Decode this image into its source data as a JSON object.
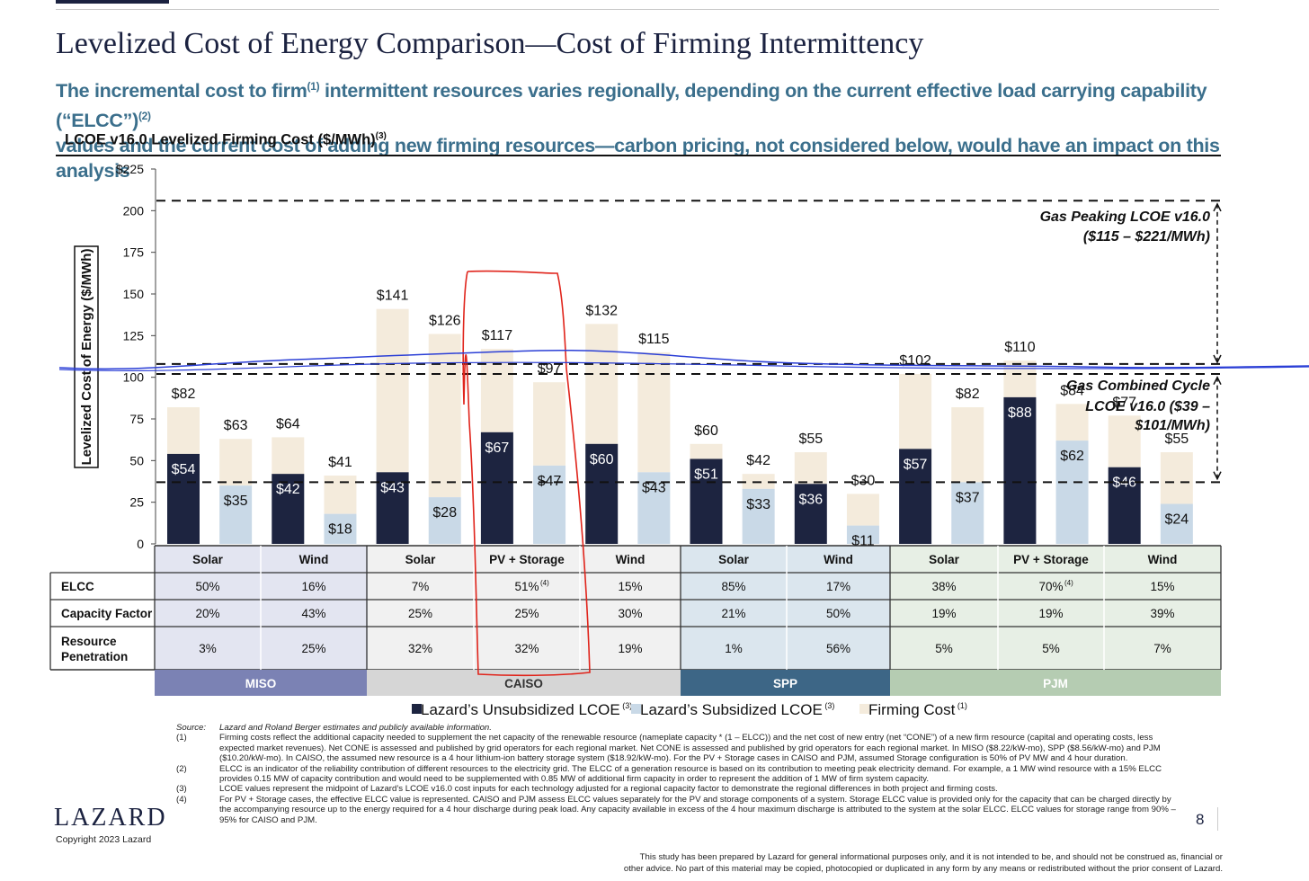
{
  "header": {
    "title": "Levelized Cost of Energy Comparison—Cost of Firming Intermittency",
    "subtitle_line1_a": "The incremental cost to firm",
    "subtitle_line1_sup1": "(1)",
    "subtitle_line1_b": " intermittent resources varies regionally, depending on the current effective load carrying capability (“ELCC”)",
    "subtitle_line1_sup2": "(2)",
    "subtitle_line2": "values and the current cost of adding new firming resources—carbon pricing, not considered below, would have an impact on this analysis",
    "chart_heading": "LCOE v16.0 Levelized Firming Cost ($/MWh)",
    "chart_heading_sup": "(3)"
  },
  "chart_data": {
    "type": "bar",
    "ylabel": "Levelized Cost of Energy ($/MWh)",
    "ylim": [
      0,
      225
    ],
    "yticks": [
      "$225",
      "200",
      "175",
      "150",
      "125",
      "100",
      "75",
      "50",
      "25",
      "0"
    ],
    "bars": [
      {
        "total": 82,
        "base": 54,
        "kind": "unsub",
        "total_label": "$82",
        "base_label": "$54"
      },
      {
        "total": 63,
        "base": 35,
        "kind": "sub",
        "total_label": "$63",
        "base_label": "$35"
      },
      {
        "total": 64,
        "base": 42,
        "kind": "unsub",
        "total_label": "$64",
        "base_label": "$42"
      },
      {
        "total": 41,
        "base": 18,
        "kind": "sub",
        "total_label": "$41",
        "base_label": "$18"
      },
      {
        "total": 141,
        "base": 43,
        "kind": "unsub",
        "total_label": "$141",
        "base_label": "$43"
      },
      {
        "total": 126,
        "base": 28,
        "kind": "sub",
        "total_label": "$126",
        "base_label": "$28"
      },
      {
        "total": 117,
        "base": 67,
        "kind": "unsub",
        "total_label": "$117",
        "base_label": "$67"
      },
      {
        "total": 97,
        "base": 47,
        "kind": "sub",
        "total_label": "$97",
        "base_label": "$47"
      },
      {
        "total": 132,
        "base": 60,
        "kind": "unsub",
        "total_label": "$132",
        "base_label": "$60"
      },
      {
        "total": 115,
        "base": 43,
        "kind": "sub",
        "total_label": "$115",
        "base_label": "$43"
      },
      {
        "total": 60,
        "base": 51,
        "kind": "unsub",
        "total_label": "$60",
        "base_label": "$51"
      },
      {
        "total": 42,
        "base": 33,
        "kind": "sub",
        "total_label": "$42",
        "base_label": "$33"
      },
      {
        "total": 55,
        "base": 36,
        "kind": "unsub",
        "total_label": "$55",
        "base_label": "$36"
      },
      {
        "total": 30,
        "base": 11,
        "kind": "sub",
        "total_label": "$30",
        "base_label": "$11"
      },
      {
        "total": 102,
        "base": 57,
        "kind": "unsub",
        "total_label": "$102",
        "base_label": "$57"
      },
      {
        "total": 82,
        "base": 37,
        "kind": "sub",
        "total_label": "$82",
        "base_label": "$37"
      },
      {
        "total": 110,
        "base": 88,
        "kind": "unsub",
        "total_label": "$110",
        "base_label": "$88"
      },
      {
        "total": 84,
        "base": 62,
        "kind": "sub",
        "total_label": "$84",
        "base_label": "$62"
      },
      {
        "total": 77,
        "base": 46,
        "kind": "unsub",
        "total_label": "$77",
        "base_label": "$46"
      },
      {
        "total": 55,
        "base": 24,
        "kind": "sub",
        "total_label": "$55",
        "base_label": "$24"
      }
    ],
    "technologies": [
      "Solar",
      "Wind",
      "Solar",
      "PV + Storage",
      "Wind",
      "Solar",
      "Wind",
      "Solar",
      "PV + Storage",
      "Wind"
    ],
    "regions": [
      {
        "name": "MISO",
        "span": 2,
        "color": "#7b82b4",
        "text_color": "#ffffff"
      },
      {
        "name": "CAISO",
        "span": 3,
        "color": "#d6d6d6",
        "text_color": "#333333"
      },
      {
        "name": "SPP",
        "span": 2,
        "color": "#3d6686",
        "text_color": "#ffffff"
      },
      {
        "name": "PJM",
        "span": 3,
        "color": "#b5ccb2",
        "text_color": "#ffffff"
      }
    ],
    "table_rows": [
      {
        "label": "ELCC",
        "values": [
          "50%",
          "16%",
          "7%",
          "51%",
          "15%",
          "85%",
          "17%",
          "38%",
          "70%",
          "15%"
        ],
        "sup": [
          "",
          "",
          "",
          "(4)",
          "",
          "",
          "",
          "",
          "(4)",
          ""
        ]
      },
      {
        "label": "Capacity Factor",
        "values": [
          "20%",
          "43%",
          "25%",
          "25%",
          "30%",
          "21%",
          "50%",
          "19%",
          "19%",
          "39%"
        ]
      },
      {
        "label": "Resource Penetration",
        "label_line1": "Resource",
        "label_line2": "Penetration",
        "values": [
          "3%",
          "25%",
          "32%",
          "32%",
          "19%",
          "1%",
          "56%",
          "5%",
          "5%",
          "7%"
        ]
      }
    ],
    "ranges": [
      {
        "name": "Gas Peaking LCOE v16.0",
        "range_text": "($115 – $221/MWh)",
        "lines": [
          206,
          108
        ]
      },
      {
        "name": "Gas Combined Cycle",
        "line2": "LCOE v16.0 ($39 –",
        "line3": "$101/MWh)",
        "lines": [
          102,
          37
        ]
      }
    ],
    "legend": [
      {
        "label": "Lazard’s Unsubsidized LCOE",
        "sup": "(3)",
        "color": "#1d2440"
      },
      {
        "label": "Lazard’s Subsidized LCOE",
        "sup": "(3)",
        "color": "#c9d9e7"
      },
      {
        "label": "Firming Cost",
        "sup": "(1)",
        "color": "#f4ebdc"
      }
    ],
    "colors": {
      "unsub": "#1d2440",
      "sub": "#c9d9e7",
      "firming": "#f4ebdc",
      "annotation_red": "#e0241b",
      "annotation_blue": "#2b3fd6"
    }
  },
  "footnotes": {
    "source_label": "Source:",
    "source_text": "Lazard and Roland Berger estimates and publicly available information.",
    "items": [
      {
        "num": "(1)",
        "text": "Firming costs reflect the additional capacity needed to supplement the net capacity of the renewable resource (nameplate capacity * (1 – ELCC)) and the net cost of new entry (net “CONE”) of a new firm resource (capital and operating costs, less expected market revenues). Net CONE is assessed and published by grid operators for each regional market. Net CONE is assessed and published by grid operators for each regional market. In MISO ($8.22/kW-mo), SPP ($8.56/kW-mo) and PJM ($10.20/kW-mo). In CAISO, the assumed new resource is a 4 hour lithium-ion battery storage system ($18.92/kW-mo). For the PV + Storage cases in CAISO and PJM, assumed Storage configuration is 50% of PV MW and 4 hour duration."
      },
      {
        "num": "(2)",
        "text": "ELCC is an indicator of the reliability contribution of different resources to the electricity grid. The ELCC of a generation resource is based on its contribution to meeting peak electricity demand. For example, a 1 MW wind resource with a 15% ELCC provides 0.15 MW of capacity contribution and would need to be supplemented with 0.85 MW of additional firm capacity in order to represent the addition of 1 MW of firm system capacity."
      },
      {
        "num": "(3)",
        "text": "LCOE values represent the midpoint of Lazard’s LCOE v16.0 cost inputs for each technology adjusted for a regional capacity factor to demonstrate the regional differences in both project and firming costs."
      },
      {
        "num": "(4)",
        "text": "For PV + Storage cases, the effective ELCC value is represented. CAISO and PJM assess ELCC values separately for the PV and storage components of a system. Storage ELCC value is provided only for the capacity that can be charged directly by the accompanying resource up to the energy required for a 4 hour discharge during peak load. Any capacity available in excess of the 4 hour maximum discharge is attributed to the system at the solar ELCC. ELCC values for storage range from 90% – 95% for CAISO and PJM."
      }
    ],
    "disclaimer_line1": "This study has been prepared by Lazard for general informational purposes only, and it is not intended to be, and should not be construed as, financial or",
    "disclaimer_line2": "other advice. No part of this material may be copied, photocopied or duplicated in any form by any means or redistributed without the prior consent of Lazard."
  },
  "branding": {
    "logo": "LAZARD",
    "copyright": "Copyright 2023 Lazard",
    "page_number": "8"
  }
}
